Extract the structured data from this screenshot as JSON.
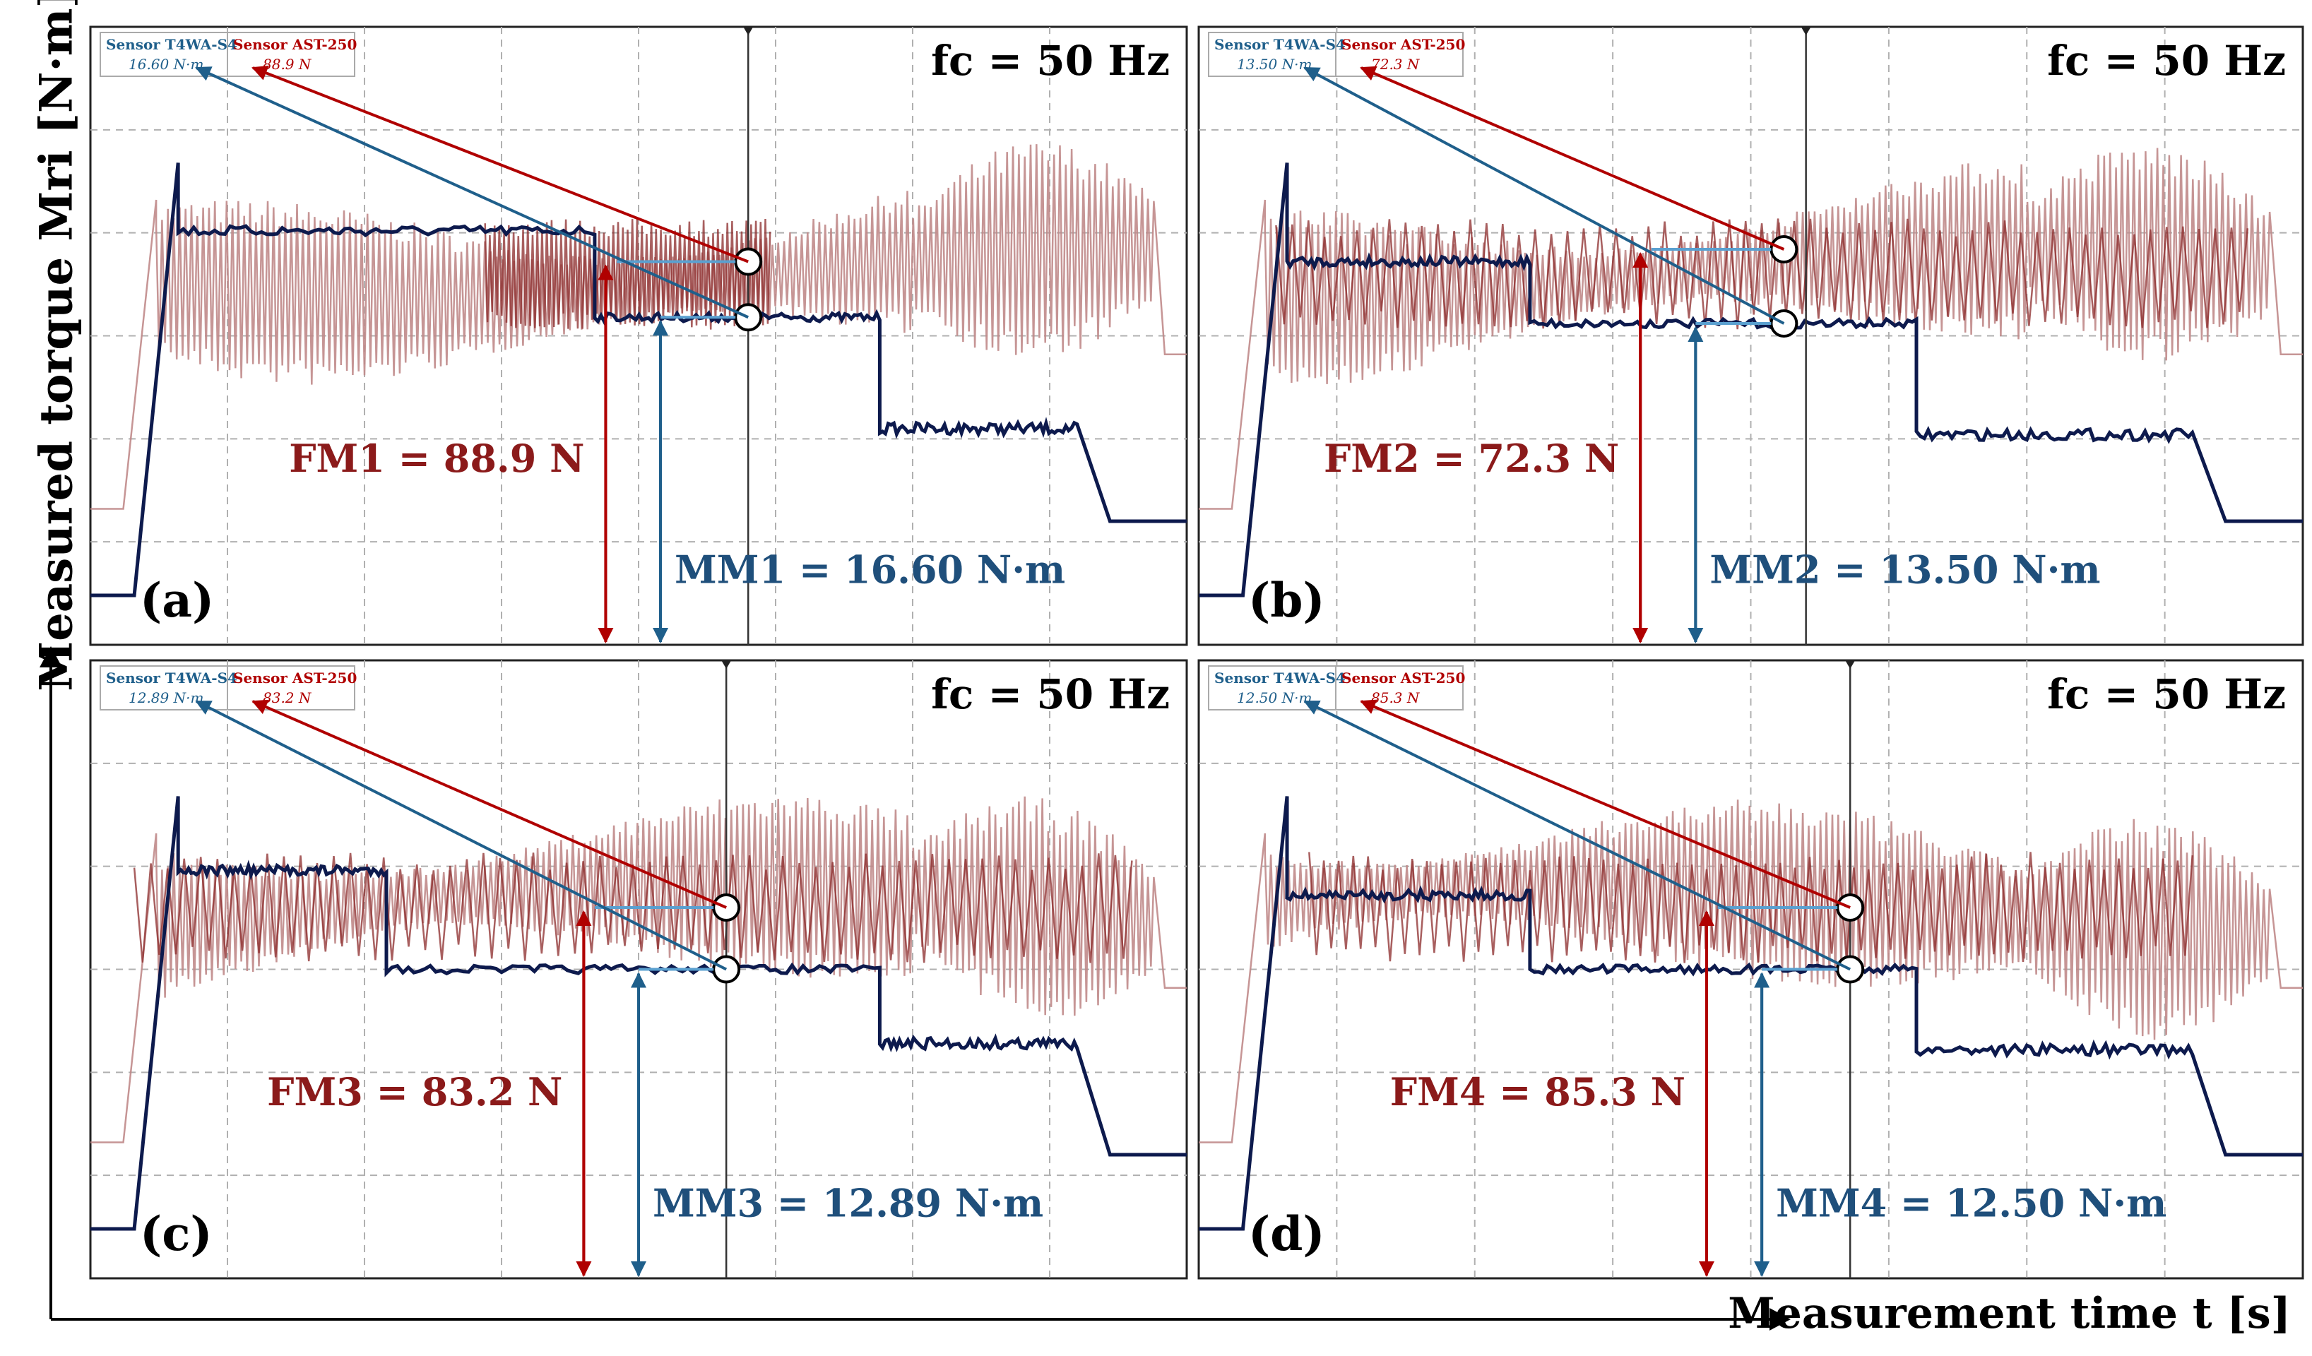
{
  "axes": {
    "y_label": "Measured torque Mri [N·m]",
    "x_label": "Measurement time t [s]"
  },
  "colors": {
    "torque": "#0d1a4d",
    "force": "#8b2a2a",
    "force_light": "#c08a8a",
    "torque_arrow": "#1f5f8b",
    "grid": "#b0b0b0",
    "raw": "#555555"
  },
  "chart_data": [
    {
      "type": "line",
      "panel_label": "(a)",
      "frequency_label": "fc = 50 Hz",
      "legend": {
        "sensor1_name": "Sensor T4WA-S4",
        "sensor1_value": "16.60 N·m",
        "sensor2_name": "Sensor AST-250",
        "sensor2_value": "88.9 N"
      },
      "annotations": {
        "force": "FM1 = 88.9 N",
        "torque": "MM1 = 16.60 N·m"
      },
      "series": [
        {
          "name": "Sensor T4WA-S4",
          "unit": "N·m",
          "marker_value": 16.6
        },
        {
          "name": "Sensor AST-250",
          "unit": "N",
          "marker_value": 88.9
        }
      ]
    },
    {
      "type": "line",
      "panel_label": "(b)",
      "frequency_label": "fc = 50 Hz",
      "legend": {
        "sensor1_name": "Sensor T4WA-S4",
        "sensor1_value": "13.50 N·m",
        "sensor2_name": "Sensor AST-250",
        "sensor2_value": "72.3 N"
      },
      "annotations": {
        "force": "FM2 = 72.3 N",
        "torque": "MM2 = 13.50 N·m"
      },
      "series": [
        {
          "name": "Sensor T4WA-S4",
          "unit": "N·m",
          "marker_value": 13.5
        },
        {
          "name": "Sensor AST-250",
          "unit": "N",
          "marker_value": 72.3
        }
      ]
    },
    {
      "type": "line",
      "panel_label": "(c)",
      "frequency_label": "fc = 50 Hz",
      "legend": {
        "sensor1_name": "Sensor T4WA-S4",
        "sensor1_value": "12.89 N·m",
        "sensor2_name": "Sensor AST-250",
        "sensor2_value": "83.2 N"
      },
      "annotations": {
        "force": "FM3 = 83.2 N",
        "torque": "MM3 = 12.89 N·m"
      },
      "series": [
        {
          "name": "Sensor T4WA-S4",
          "unit": "N·m",
          "marker_value": 12.89
        },
        {
          "name": "Sensor AST-250",
          "unit": "N",
          "marker_value": 83.2
        }
      ]
    },
    {
      "type": "line",
      "panel_label": "(d)",
      "frequency_label": "fc = 50 Hz",
      "legend": {
        "sensor1_name": "Sensor T4WA-S4",
        "sensor1_value": "12.50 N·m",
        "sensor2_name": "Sensor AST-250",
        "sensor2_value": "85.3 N"
      },
      "annotations": {
        "force": "FM4 = 85.3 N",
        "torque": "MM4 = 12.50 N·m"
      },
      "series": [
        {
          "name": "Sensor T4WA-S4",
          "unit": "N·m",
          "marker_value": 12.5
        },
        {
          "name": "Sensor AST-250",
          "unit": "N",
          "marker_value": 85.3
        }
      ]
    }
  ]
}
